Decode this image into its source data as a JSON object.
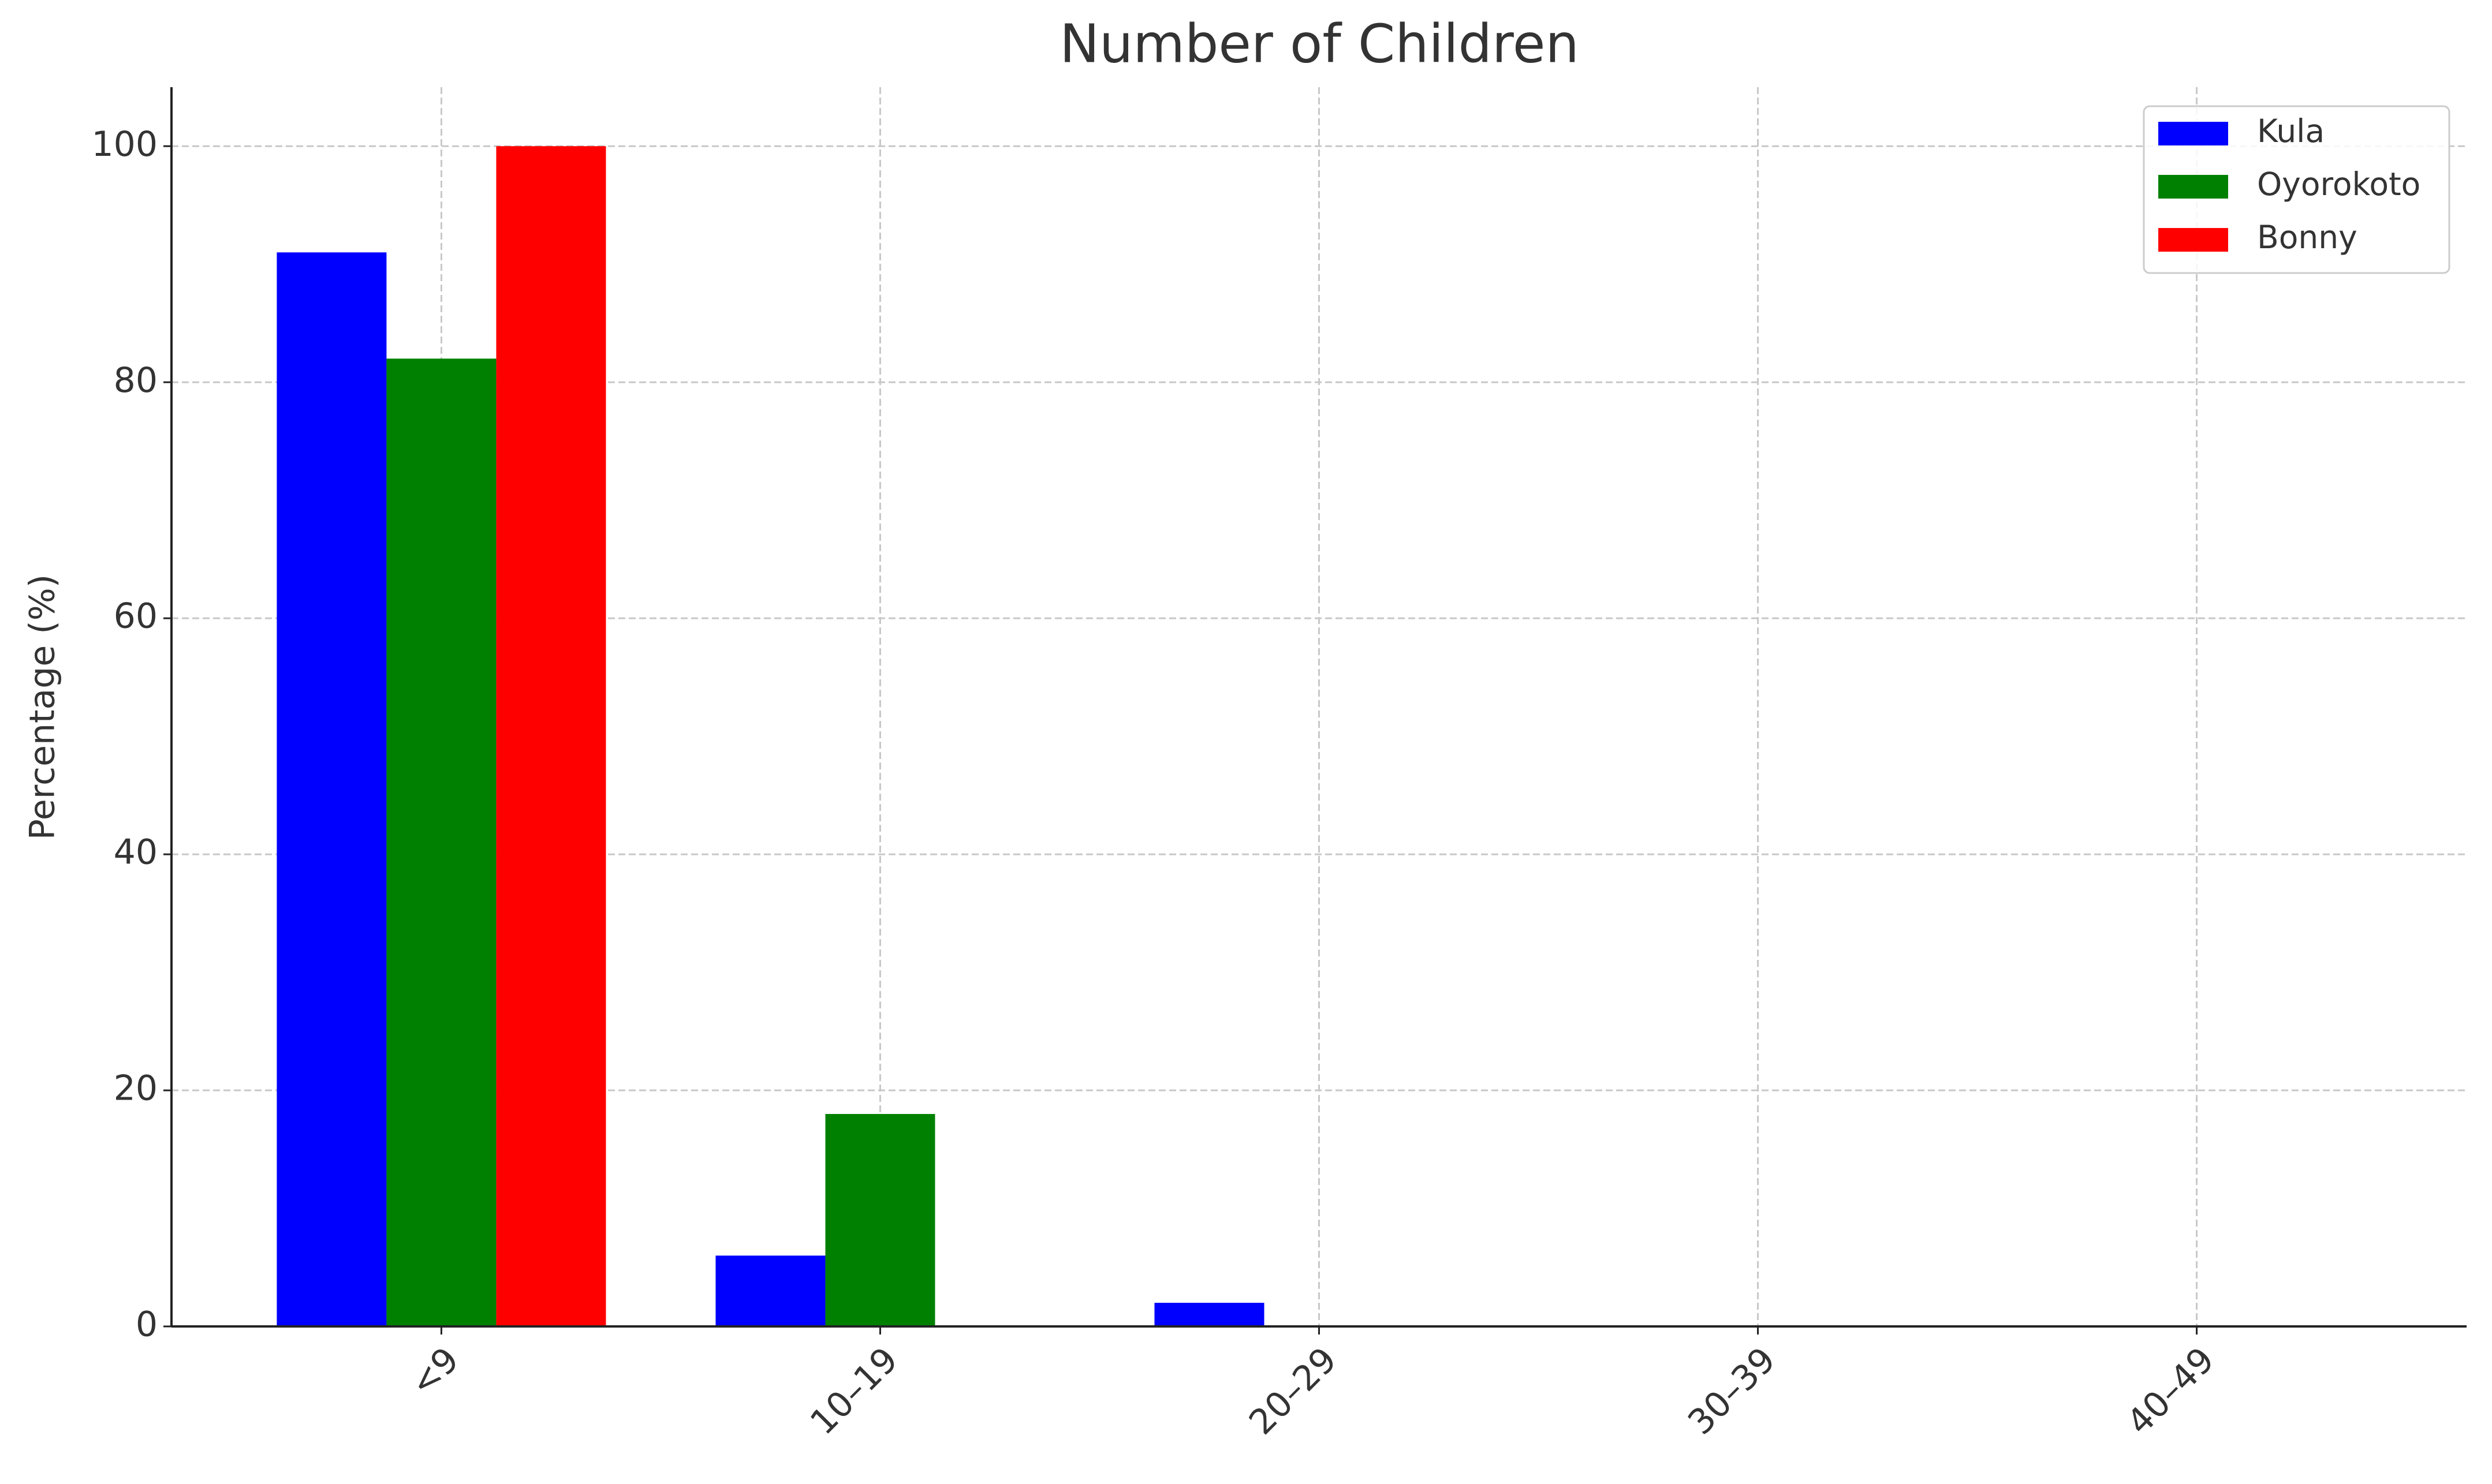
{
  "chart_data": {
    "type": "bar",
    "title": "Number of Children",
    "y_label": "Percentage (%)",
    "categories": [
      "<9",
      "10–19",
      "20–29",
      "30–39",
      "40–49"
    ],
    "series": [
      {
        "name": "Kula",
        "color": "#0000ff",
        "values": [
          91,
          6,
          2,
          0,
          0
        ]
      },
      {
        "name": "Oyorokoto",
        "color": "#008000",
        "values": [
          82,
          18,
          0,
          0,
          0
        ]
      },
      {
        "name": "Bonny",
        "color": "#ff0000",
        "values": [
          100,
          0,
          0,
          0,
          0
        ]
      }
    ],
    "ylim": [
      0,
      105
    ],
    "yticks": [
      0,
      20,
      40,
      60,
      80,
      100
    ],
    "grid": true,
    "legend": "upper right"
  }
}
